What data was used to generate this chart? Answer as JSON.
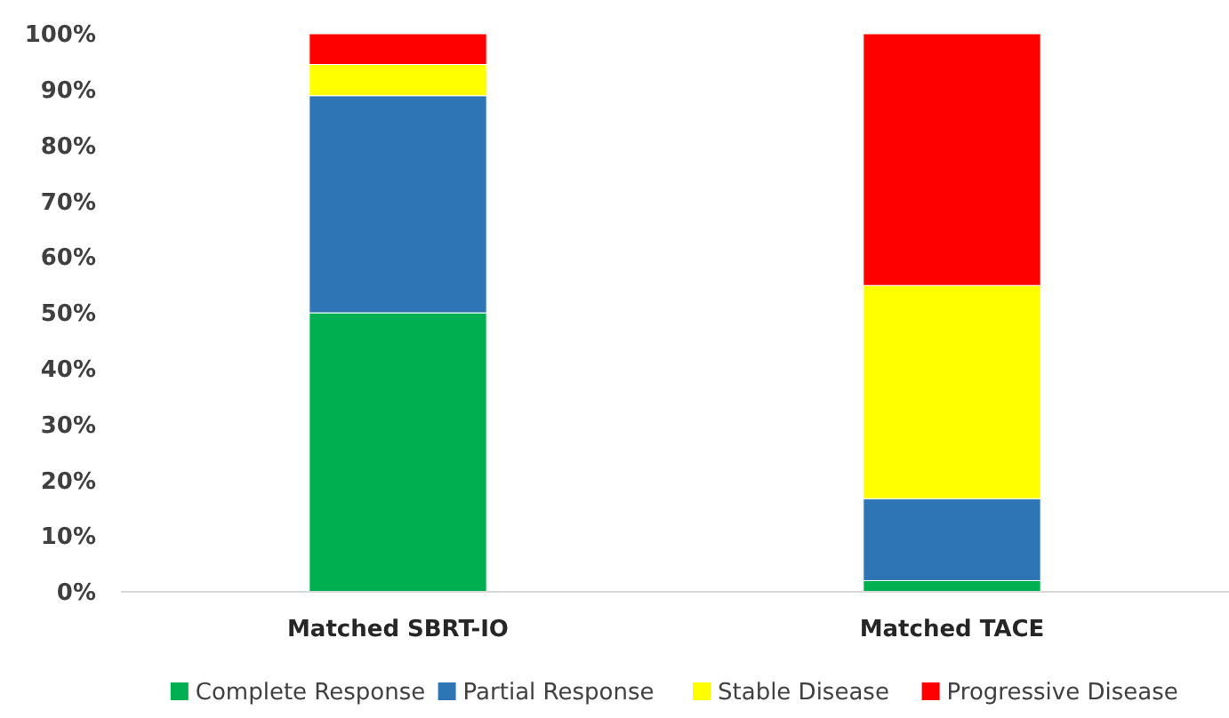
{
  "chart_data": {
    "type": "bar",
    "stacked": true,
    "categories": [
      "Matched SBRT-IO",
      "Matched TACE"
    ],
    "series": [
      {
        "name": "Complete Response",
        "color": "#00b050",
        "values": [
          50,
          2
        ]
      },
      {
        "name": "Partial Response",
        "color": "#2e75b6",
        "values": [
          38.9,
          14.7
        ]
      },
      {
        "name": "Stable Disease",
        "color": "#ffff00",
        "values": [
          5.6,
          38.2
        ]
      },
      {
        "name": "Progressive Disease",
        "color": "#ff0000",
        "values": [
          5.5,
          45.1
        ]
      }
    ],
    "ylim": [
      0,
      100
    ],
    "yticks": [
      {
        "value": 0,
        "label": "0%"
      },
      {
        "value": 10,
        "label": "10%"
      },
      {
        "value": 20,
        "label": "20%"
      },
      {
        "value": 30,
        "label": "30%"
      },
      {
        "value": 40,
        "label": "40%"
      },
      {
        "value": 50,
        "label": "50%"
      },
      {
        "value": 60,
        "label": "60%"
      },
      {
        "value": 70,
        "label": "70%"
      },
      {
        "value": 80,
        "label": "80%"
      },
      {
        "value": 90,
        "label": "90%"
      },
      {
        "value": 100,
        "label": "100%"
      }
    ],
    "grid": false,
    "legend": "bottom"
  }
}
